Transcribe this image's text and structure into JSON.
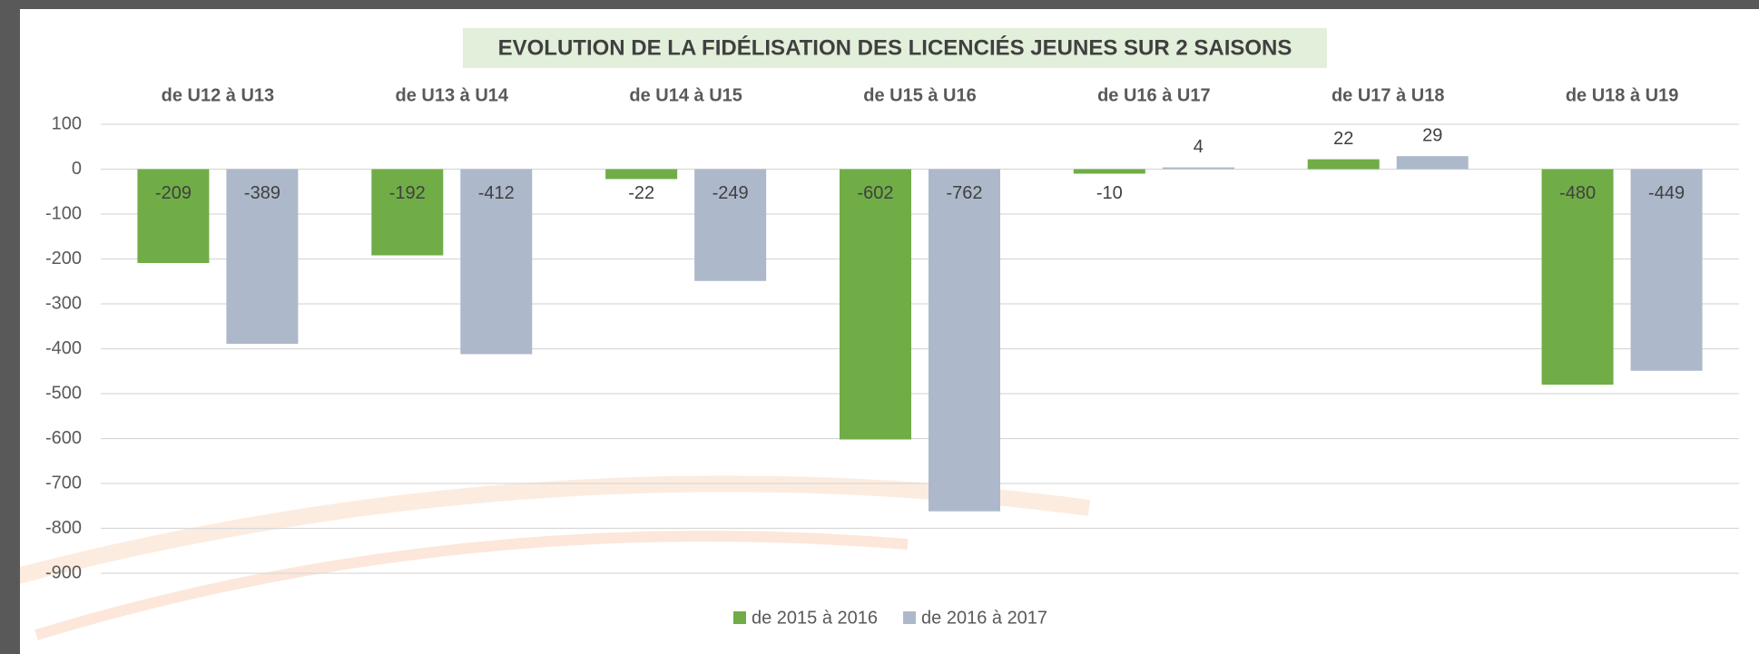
{
  "chart_data": {
    "type": "bar",
    "title": "EVOLUTION DE LA FIDÉLISATION DES LICENCIÉS JEUNES SUR 2 SAISONS",
    "categories": [
      "de U12 à U13",
      "de U13 à U14",
      "de U14 à U15",
      "de U15 à U16",
      "de U16 à U17",
      "de U17 à U18",
      "de U18 à U19"
    ],
    "series": [
      {
        "name": "de 2015 à 2016",
        "color": "#70ad47",
        "values": [
          -209,
          -192,
          -22,
          -602,
          -10,
          22,
          -480
        ]
      },
      {
        "name": "de 2016 à 2017",
        "color": "#adb9ca",
        "values": [
          -389,
          -412,
          -249,
          -762,
          4,
          29,
          -449
        ]
      }
    ],
    "ylim": [
      -900,
      100
    ],
    "yticks": [
      100,
      0,
      -100,
      -200,
      -300,
      -400,
      -500,
      -600,
      -700,
      -800,
      -900
    ],
    "grid": true,
    "legend": "bottom"
  }
}
